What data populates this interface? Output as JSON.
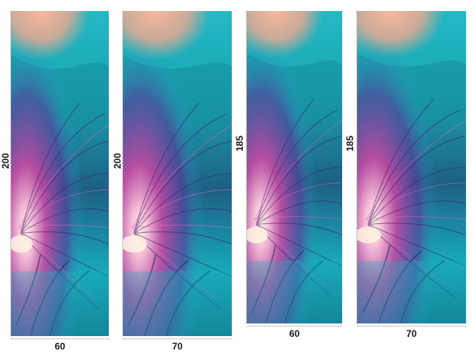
{
  "panels": [
    {
      "width_label": "60",
      "height_label": "200"
    },
    {
      "width_label": "70",
      "height_label": "200"
    },
    {
      "width_label": "60",
      "height_label": "185"
    },
    {
      "width_label": "70",
      "height_label": "185"
    }
  ],
  "artwork": {
    "description_colors": {
      "base": "#1fb8c4",
      "deep": "#0d3a55",
      "magenta": "#d24aa8",
      "peach": "#f7b79a",
      "violet": "#6a3fa8",
      "cream": "#fff2dc"
    }
  }
}
